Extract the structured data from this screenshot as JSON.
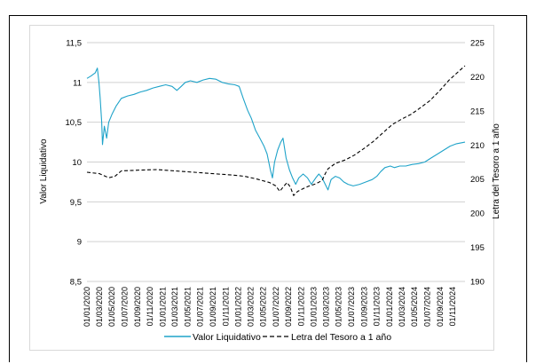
{
  "chart_data": {
    "type": "line",
    "title": "",
    "ylabel": "Valor Liquidativo",
    "y2label": "Letra del Tesoro a 1 año",
    "ylim": [
      8.5,
      11.5
    ],
    "y2lim": [
      190,
      225
    ],
    "yticks": [
      "8,5",
      "9",
      "9,5",
      "10",
      "10,5",
      "11",
      "11,5"
    ],
    "y2ticks": [
      "190",
      "195",
      "200",
      "205",
      "210",
      "215",
      "220",
      "225"
    ],
    "x_range": [
      "2020-01-01",
      "2024-12-31"
    ],
    "xticks": [
      "01/01/2020",
      "01/03/2020",
      "01/05/2020",
      "01/07/2020",
      "01/09/2020",
      "01/11/2020",
      "01/01/2021",
      "01/03/2021",
      "01/05/2021",
      "01/07/2021",
      "01/09/2021",
      "01/11/2021",
      "01/01/2022",
      "01/03/2022",
      "01/05/2022",
      "01/07/2022",
      "01/09/2022",
      "01/11/2022",
      "01/01/2023",
      "01/03/2023",
      "01/05/2023",
      "01/07/2023",
      "01/09/2023",
      "01/11/2023",
      "01/01/2024",
      "01/03/2024",
      "01/05/2024",
      "01/07/2024",
      "01/09/2024",
      "01/11/2024"
    ],
    "grid": "horizontal",
    "legend_position": "bottom",
    "series": [
      {
        "name": "Valor Liquidativo",
        "axis": "left",
        "color": "#1fa3c9",
        "points": [
          [
            "2020-01-01",
            11.05
          ],
          [
            "2020-01-20",
            11.08
          ],
          [
            "2020-02-10",
            11.12
          ],
          [
            "2020-02-20",
            11.18
          ],
          [
            "2020-02-28",
            11.0
          ],
          [
            "2020-03-05",
            10.8
          ],
          [
            "2020-03-12",
            10.5
          ],
          [
            "2020-03-16",
            10.22
          ],
          [
            "2020-03-25",
            10.45
          ],
          [
            "2020-04-05",
            10.3
          ],
          [
            "2020-04-15",
            10.5
          ],
          [
            "2020-05-01",
            10.6
          ],
          [
            "2020-05-20",
            10.7
          ],
          [
            "2020-06-15",
            10.8
          ],
          [
            "2020-07-15",
            10.83
          ],
          [
            "2020-08-15",
            10.85
          ],
          [
            "2020-09-15",
            10.88
          ],
          [
            "2020-10-15",
            10.9
          ],
          [
            "2020-11-15",
            10.93
          ],
          [
            "2020-12-15",
            10.95
          ],
          [
            "2021-01-15",
            10.97
          ],
          [
            "2021-02-15",
            10.95
          ],
          [
            "2021-03-10",
            10.9
          ],
          [
            "2021-03-31",
            10.95
          ],
          [
            "2021-04-20",
            11.0
          ],
          [
            "2021-05-15",
            11.02
          ],
          [
            "2021-06-15",
            11.0
          ],
          [
            "2021-07-15",
            11.03
          ],
          [
            "2021-08-15",
            11.05
          ],
          [
            "2021-09-15",
            11.04
          ],
          [
            "2021-10-15",
            11.0
          ],
          [
            "2021-11-15",
            10.98
          ],
          [
            "2021-12-15",
            10.97
          ],
          [
            "2022-01-05",
            10.95
          ],
          [
            "2022-01-25",
            10.8
          ],
          [
            "2022-02-15",
            10.65
          ],
          [
            "2022-03-05",
            10.55
          ],
          [
            "2022-03-25",
            10.4
          ],
          [
            "2022-04-15",
            10.3
          ],
          [
            "2022-05-05",
            10.2
          ],
          [
            "2022-05-20",
            10.1
          ],
          [
            "2022-06-05",
            9.9
          ],
          [
            "2022-06-15",
            9.8
          ],
          [
            "2022-06-25",
            10.0
          ],
          [
            "2022-07-10",
            10.15
          ],
          [
            "2022-07-25",
            10.25
          ],
          [
            "2022-08-05",
            10.3
          ],
          [
            "2022-08-20",
            10.05
          ],
          [
            "2022-09-05",
            9.9
          ],
          [
            "2022-09-20",
            9.8
          ],
          [
            "2022-10-05",
            9.72
          ],
          [
            "2022-10-20",
            9.8
          ],
          [
            "2022-11-10",
            9.85
          ],
          [
            "2022-12-01",
            9.8
          ],
          [
            "2022-12-20",
            9.72
          ],
          [
            "2023-01-10",
            9.8
          ],
          [
            "2023-01-25",
            9.85
          ],
          [
            "2023-02-10",
            9.8
          ],
          [
            "2023-02-25",
            9.72
          ],
          [
            "2023-03-10",
            9.65
          ],
          [
            "2023-03-25",
            9.78
          ],
          [
            "2023-04-15",
            9.82
          ],
          [
            "2023-05-05",
            9.8
          ],
          [
            "2023-05-25",
            9.75
          ],
          [
            "2023-06-15",
            9.72
          ],
          [
            "2023-07-10",
            9.7
          ],
          [
            "2023-08-10",
            9.72
          ],
          [
            "2023-09-10",
            9.75
          ],
          [
            "2023-10-10",
            9.78
          ],
          [
            "2023-11-01",
            9.82
          ],
          [
            "2023-11-20",
            9.88
          ],
          [
            "2023-12-10",
            9.93
          ],
          [
            "2024-01-05",
            9.95
          ],
          [
            "2024-01-25",
            9.93
          ],
          [
            "2024-02-20",
            9.95
          ],
          [
            "2024-03-20",
            9.95
          ],
          [
            "2024-04-20",
            9.97
          ],
          [
            "2024-05-20",
            9.98
          ],
          [
            "2024-06-20",
            10.0
          ],
          [
            "2024-07-20",
            10.05
          ],
          [
            "2024-08-20",
            10.1
          ],
          [
            "2024-09-20",
            10.15
          ],
          [
            "2024-10-20",
            10.2
          ],
          [
            "2024-11-20",
            10.23
          ],
          [
            "2024-12-31",
            10.25
          ]
        ]
      },
      {
        "name": "Letra del Tesoro a 1 año",
        "axis": "right",
        "color": "#000000",
        "dashed": true,
        "points": [
          [
            "2020-01-01",
            206.0
          ],
          [
            "2020-03-01",
            205.8
          ],
          [
            "2020-04-15",
            205.2
          ],
          [
            "2020-05-15",
            205.4
          ],
          [
            "2020-06-15",
            206.2
          ],
          [
            "2020-09-01",
            206.3
          ],
          [
            "2020-12-01",
            206.4
          ],
          [
            "2021-03-01",
            206.2
          ],
          [
            "2021-06-01",
            206.0
          ],
          [
            "2021-09-01",
            205.8
          ],
          [
            "2021-12-01",
            205.6
          ],
          [
            "2022-02-01",
            205.4
          ],
          [
            "2022-04-01",
            205.0
          ],
          [
            "2022-06-01",
            204.5
          ],
          [
            "2022-07-01",
            204.0
          ],
          [
            "2022-07-20",
            203.2
          ],
          [
            "2022-08-10",
            204.0
          ],
          [
            "2022-08-25",
            204.5
          ],
          [
            "2022-09-10",
            203.8
          ],
          [
            "2022-09-25",
            202.6
          ],
          [
            "2022-10-15",
            203.2
          ],
          [
            "2022-11-10",
            203.6
          ],
          [
            "2022-12-10",
            204.0
          ],
          [
            "2023-01-10",
            204.3
          ],
          [
            "2023-02-10",
            204.8
          ],
          [
            "2023-02-25",
            205.8
          ],
          [
            "2023-03-10",
            206.5
          ],
          [
            "2023-04-15",
            207.3
          ],
          [
            "2023-06-01",
            207.8
          ],
          [
            "2023-07-15",
            208.5
          ],
          [
            "2023-09-01",
            209.5
          ],
          [
            "2023-10-15",
            210.5
          ],
          [
            "2023-12-01",
            211.8
          ],
          [
            "2024-01-15",
            213.0
          ],
          [
            "2024-03-01",
            213.8
          ],
          [
            "2024-04-15",
            214.5
          ],
          [
            "2024-06-01",
            215.5
          ],
          [
            "2024-07-15",
            216.5
          ],
          [
            "2024-09-01",
            218.0
          ],
          [
            "2024-10-15",
            219.5
          ],
          [
            "2024-12-01",
            220.8
          ],
          [
            "2024-12-31",
            221.6
          ]
        ]
      }
    ]
  }
}
